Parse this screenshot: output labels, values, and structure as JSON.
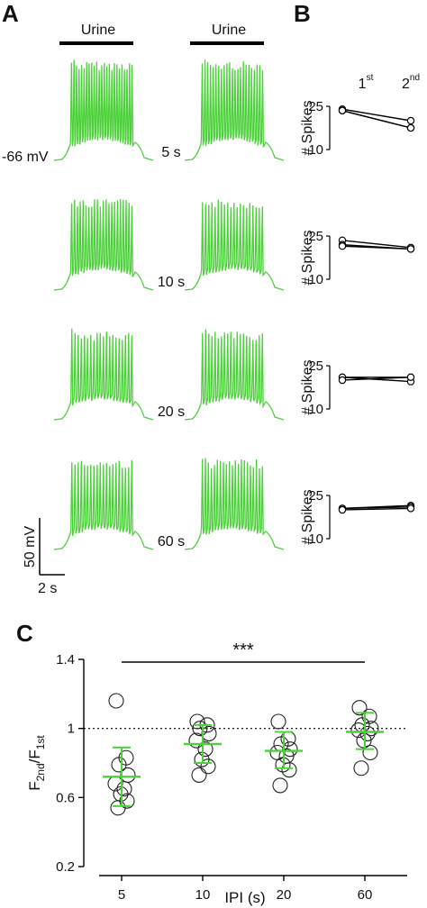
{
  "figure": {
    "panel_a": "A",
    "panel_b": "B",
    "panel_c": "C",
    "stimulus_label": "Urine",
    "resting_potential": "-66 mV",
    "scale_voltage": "50 mV",
    "scale_time": "2 s",
    "trace_color": "#4cd13a",
    "mean_color": "#4cd13a"
  },
  "chart_data": [
    {
      "type": "line",
      "panel": "A",
      "description_free": true,
      "rows": [
        {
          "ipi_label": "5 s",
          "ipi_s": 5
        },
        {
          "ipi_label": "10 s",
          "ipi_s": 10
        },
        {
          "ipi_label": "20 s",
          "ipi_s": 20
        },
        {
          "ipi_label": "60 s",
          "ipi_s": 60
        }
      ],
      "header_label": "Urine"
    },
    {
      "type": "line",
      "panel": "B",
      "x": [
        "1st",
        "2nd"
      ],
      "x_tick_main": [
        "1",
        "2"
      ],
      "x_tick_sup": [
        "st",
        "nd"
      ],
      "ylabel": "# Spikes",
      "ylim": [
        10,
        25
      ],
      "yticks": [
        10,
        25
      ],
      "groups": [
        {
          "series": [
            {
              "values": [
                24,
                20
              ]
            },
            {
              "values": [
                23.5,
                17.5
              ]
            },
            {
              "values": [
                23.5,
                17.5
              ]
            }
          ]
        },
        {
          "series": [
            {
              "values": [
                23.5,
                21
              ]
            },
            {
              "values": [
                22,
                20.5
              ]
            },
            {
              "values": [
                21.5,
                20.5
              ]
            }
          ]
        },
        {
          "series": [
            {
              "values": [
                21,
                21
              ]
            },
            {
              "values": [
                21,
                19.5
              ]
            },
            {
              "values": [
                20,
                21
              ]
            }
          ]
        },
        {
          "series": [
            {
              "values": [
                20.5,
                21.5
              ]
            },
            {
              "values": [
                20.5,
                21
              ]
            },
            {
              "values": [
                20,
                20.5
              ]
            }
          ]
        }
      ]
    },
    {
      "type": "scatter",
      "panel": "C",
      "title": "",
      "xlabel": "IPI (s)",
      "ylabel_main": "F",
      "ylabel_sub1": "2nd",
      "ylabel_mid": "/F",
      "ylabel_sub2": "1st",
      "categories": [
        "5",
        "10",
        "20",
        "60"
      ],
      "ylim": [
        0.2,
        1.4
      ],
      "yticks": [
        "0.2",
        "0.6",
        "1",
        "1.4"
      ],
      "reference_line": 1,
      "significance": "***",
      "points": [
        [
          1.16,
          0.83,
          0.79,
          0.73,
          0.68,
          0.65,
          0.62,
          0.58,
          0.54
        ],
        [
          1.04,
          1.02,
          1.0,
          0.97,
          0.93,
          0.88,
          0.82,
          0.78,
          0.73
        ],
        [
          1.04,
          0.94,
          0.91,
          0.88,
          0.86,
          0.84,
          0.79,
          0.76,
          0.67
        ],
        [
          1.12,
          1.07,
          1.02,
          1.0,
          0.99,
          0.97,
          0.93,
          0.86,
          0.77
        ]
      ],
      "mean": [
        0.72,
        0.91,
        0.87,
        0.98
      ],
      "sd_lower": [
        0.55,
        0.8,
        0.77,
        0.88
      ],
      "sd_upper": [
        0.89,
        1.02,
        0.98,
        1.09
      ]
    }
  ]
}
